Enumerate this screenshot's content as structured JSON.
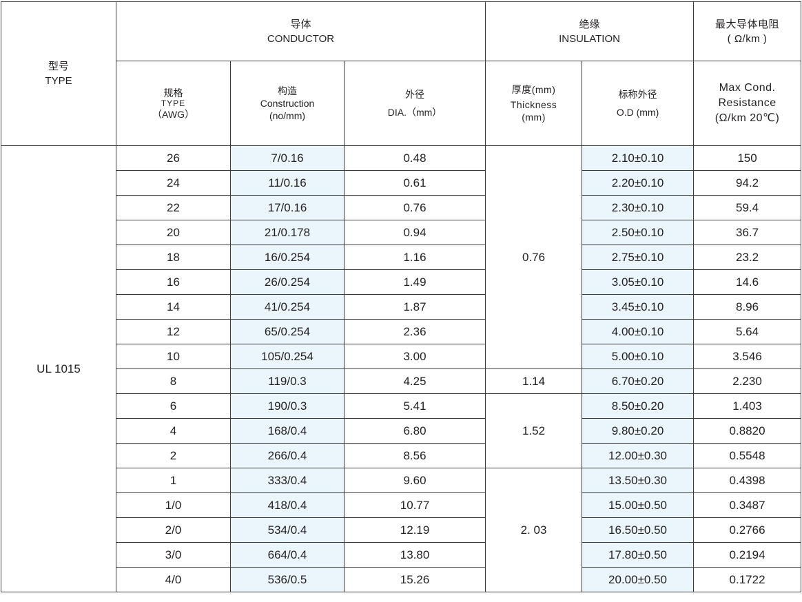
{
  "header": {
    "type_cn": "型号",
    "type_en": "TYPE",
    "conductor_cn": "导体",
    "conductor_en": "CONDUCTOR",
    "insulation_cn": "绝缘",
    "insulation_en": "INSULATION",
    "resistance_cn": "最大导体电阻",
    "resistance_unit": "( Ω/km )",
    "awg_cn": "规格",
    "awg_en": "TYPE",
    "awg_unit": "（AWG）",
    "construction_cn": "构造",
    "construction_en": "Construction",
    "construction_unit": "(no/mm)",
    "dia_cn": "外径",
    "dia_en": "DIA.（mm）",
    "thickness_cn": "厚度(mm)",
    "thickness_en": "Thickness",
    "thickness_unit": "(mm)",
    "od_cn": "标称外径",
    "od_en": "O.D (mm)",
    "res_line1": "Max Cond.",
    "res_line2": "Resistance",
    "res_line3": "(Ω/km 20℃)"
  },
  "type_value": "UL 1015",
  "colors": {
    "highlight": "#eaf6fc",
    "border": "#3a3a3a"
  },
  "thickness_groups": [
    {
      "value": "0.76",
      "rows": 9
    },
    {
      "value": "1.14",
      "rows": 1
    },
    {
      "value": "1.52",
      "rows": 3
    },
    {
      "value": "2. 03",
      "rows": 5
    }
  ],
  "rows": [
    {
      "awg": "26",
      "construction": "7/0.16",
      "dia": "0.48",
      "od": "2.10±0.10",
      "resistance": "150"
    },
    {
      "awg": "24",
      "construction": "11/0.16",
      "dia": "0.61",
      "od": "2.20±0.10",
      "resistance": "94.2"
    },
    {
      "awg": "22",
      "construction": "17/0.16",
      "dia": "0.76",
      "od": "2.30±0.10",
      "resistance": "59.4"
    },
    {
      "awg": "20",
      "construction": "21/0.178",
      "dia": "0.94",
      "od": "2.50±0.10",
      "resistance": "36.7"
    },
    {
      "awg": "18",
      "construction": "16/0.254",
      "dia": "1.16",
      "od": "2.75±0.10",
      "resistance": "23.2"
    },
    {
      "awg": "16",
      "construction": "26/0.254",
      "dia": "1.49",
      "od": "3.05±0.10",
      "resistance": "14.6"
    },
    {
      "awg": "14",
      "construction": "41/0.254",
      "dia": "1.87",
      "od": "3.45±0.10",
      "resistance": "8.96"
    },
    {
      "awg": "12",
      "construction": "65/0.254",
      "dia": "2.36",
      "od": "4.00±0.10",
      "resistance": "5.64"
    },
    {
      "awg": "10",
      "construction": "105/0.254",
      "dia": "3.00",
      "od": "5.00±0.10",
      "resistance": "3.546"
    },
    {
      "awg": "8",
      "construction": "119/0.3",
      "dia": "4.25",
      "od": "6.70±0.20",
      "resistance": "2.230"
    },
    {
      "awg": "6",
      "construction": "190/0.3",
      "dia": "5.41",
      "od": "8.50±0.20",
      "resistance": "1.403"
    },
    {
      "awg": "4",
      "construction": "168/0.4",
      "dia": "6.80",
      "od": "9.80±0.20",
      "resistance": "0.8820"
    },
    {
      "awg": "2",
      "construction": "266/0.4",
      "dia": "8.56",
      "od": "12.00±0.30",
      "resistance": "0.5548"
    },
    {
      "awg": "1",
      "construction": "333/0.4",
      "dia": "9.60",
      "od": "13.50±0.30",
      "resistance": "0.4398"
    },
    {
      "awg": "1/0",
      "construction": "418/0.4",
      "dia": "10.77",
      "od": "15.00±0.50",
      "resistance": "0.3487"
    },
    {
      "awg": "2/0",
      "construction": "534/0.4",
      "dia": "12.19",
      "od": "16.50±0.50",
      "resistance": "0.2766"
    },
    {
      "awg": "3/0",
      "construction": "664/0.4",
      "dia": "13.80",
      "od": "17.80±0.50",
      "resistance": "0.2194"
    },
    {
      "awg": "4/0",
      "construction": "536/0.5",
      "dia": "15.26",
      "od": "20.00±0.50",
      "resistance": "0.1722"
    }
  ]
}
